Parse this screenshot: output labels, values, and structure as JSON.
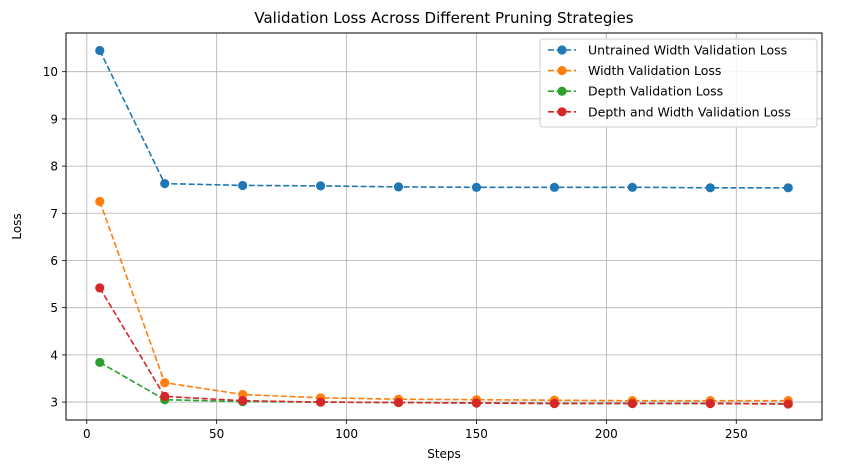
{
  "chart_data": {
    "type": "line",
    "title": "Validation Loss Across Different Pruning Strategies",
    "xlabel": "Steps",
    "ylabel": "Loss",
    "xlim": [
      -8,
      283
    ],
    "ylim": [
      2.62,
      10.82
    ],
    "xticks": [
      0,
      50,
      100,
      150,
      200,
      250
    ],
    "yticks": [
      3,
      4,
      5,
      6,
      7,
      8,
      9,
      10
    ],
    "grid": true,
    "legend_position": "top-right",
    "x": [
      5,
      30,
      60,
      90,
      120,
      150,
      180,
      210,
      240,
      270
    ],
    "series": [
      {
        "name": "Untrained Width Validation Loss",
        "color": "#1f77b4",
        "values": [
          10.45,
          7.63,
          7.59,
          7.58,
          7.56,
          7.55,
          7.55,
          7.55,
          7.54,
          7.54
        ]
      },
      {
        "name": "Width Validation Loss",
        "color": "#ff7f0e",
        "values": [
          7.25,
          3.41,
          3.16,
          3.09,
          3.06,
          3.05,
          3.04,
          3.03,
          3.03,
          3.03
        ]
      },
      {
        "name": "Depth Validation Loss",
        "color": "#2ca02c",
        "values": [
          3.84,
          3.05,
          3.01,
          3.0,
          2.99,
          2.98,
          2.97,
          2.97,
          2.97,
          2.96
        ]
      },
      {
        "name": "Depth and Width Validation Loss",
        "color": "#d62728",
        "values": [
          5.42,
          3.12,
          3.03,
          3.0,
          2.99,
          2.98,
          2.97,
          2.97,
          2.97,
          2.96
        ]
      }
    ]
  }
}
